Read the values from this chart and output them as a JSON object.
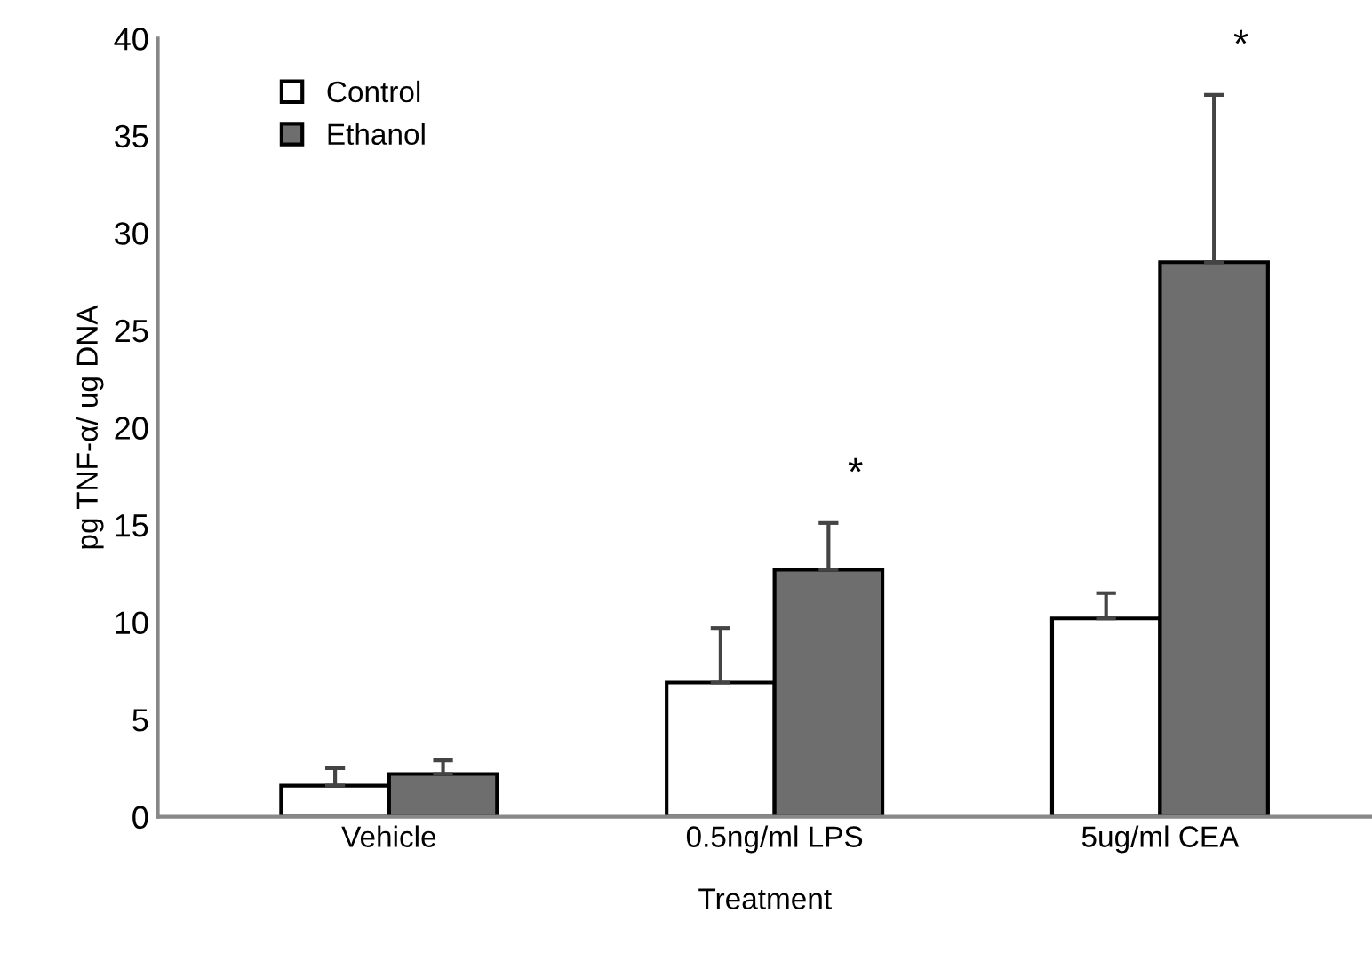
{
  "chart_data": {
    "type": "bar",
    "xlabel": "Treatment",
    "ylabel": "pg TNF-α/ ug DNA",
    "categories": [
      "Vehicle",
      "0.5ng/ml LPS",
      "5ug/ml CEA"
    ],
    "series": [
      {
        "name": "Control",
        "color": "#ffffff",
        "values": [
          1.6,
          6.9,
          10.2
        ],
        "errors": [
          0.9,
          2.8,
          1.3
        ]
      },
      {
        "name": "Ethanol",
        "color": "#6e6e6e",
        "values": [
          2.2,
          12.7,
          28.5
        ],
        "errors": [
          0.7,
          2.4,
          8.6
        ]
      }
    ],
    "annotations": [
      "*",
      "*"
    ],
    "ylim": [
      0,
      40
    ],
    "yticks": [
      0,
      5,
      10,
      15,
      20,
      25,
      30,
      35,
      40
    ],
    "legend": "top left",
    "grid": false
  }
}
